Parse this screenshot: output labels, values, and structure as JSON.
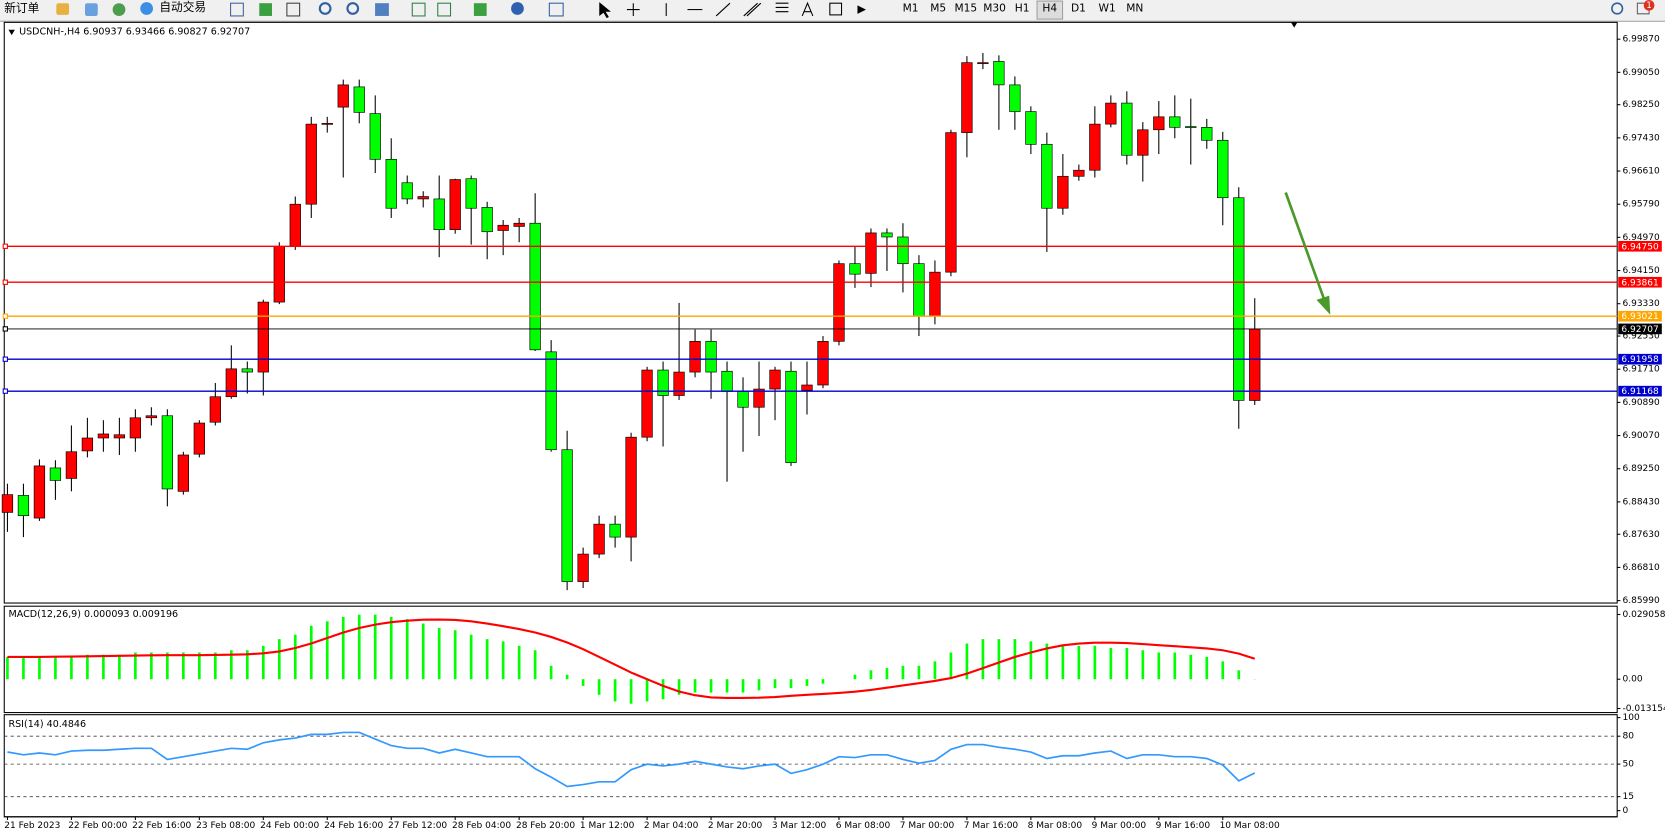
{
  "toolbar": {
    "new_order": "新订单",
    "auto_trading": "自动交易",
    "timeframes": [
      "M1",
      "M5",
      "M15",
      "M30",
      "H1",
      "H4",
      "D1",
      "W1",
      "MN"
    ],
    "alerts": "1"
  },
  "chart_data": [
    {
      "type": "candlestick",
      "title": "USDCNH-,H4  6.90937 6.93466 6.90827 6.92707",
      "categories": [
        "21 Feb 2023",
        null,
        null,
        null,
        "22 Feb 00:00",
        null,
        null,
        null,
        "22 Feb 16:00",
        null,
        null,
        null,
        "23 Feb 08:00",
        null,
        null,
        null,
        "24 Feb 00:00",
        null,
        null,
        null,
        "24 Feb 16:00",
        null,
        null,
        null,
        "27 Feb 12:00",
        null,
        null,
        null,
        "28 Feb 04:00",
        null,
        null,
        null,
        "28 Feb 20:00",
        null,
        null,
        null,
        "1 Mar 12:00",
        null,
        null,
        null,
        "2 Mar 04:00",
        null,
        null,
        null,
        "2 Mar 20:00",
        null,
        null,
        null,
        "3 Mar 12:00",
        null,
        null,
        null,
        "6 Mar 08:00",
        null,
        null,
        null,
        "7 Mar 00:00",
        null,
        null,
        null,
        "7 Mar 16:00",
        null,
        null,
        null,
        "8 Mar 08:00",
        null,
        null,
        null,
        "9 Mar 00:00",
        null,
        null,
        null,
        "9 Mar 16:00",
        null,
        null,
        null,
        "10 Mar 08:00",
        null,
        null
      ],
      "open": [
        6.8817,
        6.8859,
        6.8803,
        6.8927,
        6.8901,
        6.8969,
        6.9001,
        6.9001,
        6.9001,
        6.9051,
        6.9056,
        6.8869,
        6.8961,
        6.904,
        6.9103,
        6.9172,
        6.9164,
        6.9337,
        6.9474,
        6.9579,
        6.9777,
        6.9819,
        6.9869,
        6.9803,
        6.969,
        6.9632,
        6.9592,
        6.9592,
        6.9516,
        6.9642,
        6.9571,
        6.9514,
        6.9524,
        6.9532,
        6.9214,
        6.8972,
        6.8646,
        6.8714,
        6.8788,
        6.8756,
        6.9003,
        6.9169,
        6.9106,
        6.9164,
        6.924,
        6.9166,
        6.9116,
        6.9077,
        6.9122,
        6.9166,
        6.9119,
        6.9132,
        6.924,
        6.9432,
        6.9408,
        6.9508,
        6.9498,
        6.9432,
        6.9303,
        6.9411,
        6.9756,
        6.9927,
        6.9932,
        6.9874,
        6.9808,
        6.9727,
        6.9569,
        6.9648,
        6.9663,
        6.9777,
        6.9829,
        6.97,
        6.9763,
        6.9795,
        6.9771,
        6.9769,
        6.9737,
        6.9595,
        6.90937
      ],
      "high": [
        6.8888,
        6.8888,
        6.8948,
        6.8946,
        6.9032,
        6.9051,
        6.9045,
        6.9051,
        6.9072,
        6.9077,
        6.9072,
        6.8967,
        6.9045,
        6.9137,
        6.923,
        6.919,
        6.9343,
        6.9485,
        6.9598,
        6.9795,
        6.9795,
        6.9887,
        6.9887,
        6.9848,
        6.9742,
        6.965,
        6.9611,
        6.965,
        6.9642,
        6.965,
        6.9585,
        6.954,
        6.9545,
        6.9606,
        6.9243,
        6.9019,
        6.873,
        6.8809,
        6.8809,
        6.9014,
        6.9177,
        6.919,
        6.9335,
        6.9269,
        6.9269,
        6.919,
        6.9151,
        6.919,
        6.9177,
        6.919,
        6.919,
        6.9253,
        6.944,
        6.9474,
        6.9519,
        6.9519,
        6.9532,
        6.9453,
        6.944,
        6.9763,
        6.9945,
        6.9953,
        6.9947,
        6.9895,
        6.9821,
        6.9756,
        6.9703,
        6.9677,
        6.9821,
        6.9848,
        6.9858,
        6.9782,
        6.9834,
        6.9848,
        6.984,
        6.979,
        6.9758,
        6.9621,
        6.93466
      ],
      "low": [
        6.8769,
        6.8756,
        6.8796,
        6.8848,
        6.8869,
        6.8953,
        6.8967,
        6.8959,
        6.8967,
        6.9032,
        6.8832,
        6.8861,
        6.8953,
        6.9032,
        6.9098,
        6.9111,
        6.9106,
        6.9332,
        6.9466,
        6.9545,
        6.9756,
        6.9645,
        6.9779,
        6.9656,
        6.9545,
        6.9579,
        6.9571,
        6.9448,
        6.9506,
        6.9479,
        6.9443,
        6.9453,
        6.9485,
        6.9216,
        6.8967,
        6.8625,
        6.863,
        6.8704,
        6.873,
        6.8696,
        6.8993,
        6.898,
        6.9095,
        6.9151,
        6.9098,
        6.8893,
        6.8967,
        6.9006,
        6.9045,
        6.8932,
        6.9059,
        6.9124,
        6.923,
        6.9372,
        6.9374,
        6.9414,
        6.9361,
        6.9253,
        6.9282,
        6.9401,
        6.9695,
        6.9913,
        6.9763,
        6.9763,
        6.9703,
        6.9461,
        6.9553,
        6.9637,
        6.9645,
        6.9769,
        6.9677,
        6.9635,
        6.9703,
        6.9742,
        6.9677,
        6.9716,
        6.9527,
        6.9024,
        6.90827
      ],
      "close": [
        6.8861,
        6.8809,
        6.8932,
        6.8896,
        6.8967,
        6.9001,
        6.9011,
        6.9009,
        6.9051,
        6.9056,
        6.8875,
        6.8959,
        6.9038,
        6.9103,
        6.9172,
        6.9164,
        6.9337,
        6.9474,
        6.9579,
        6.9777,
        6.9779,
        6.9874,
        6.9806,
        6.969,
        6.9569,
        6.9592,
        6.9598,
        6.9516,
        6.964,
        6.9569,
        6.9511,
        6.9527,
        6.9532,
        6.9219,
        6.8972,
        6.8646,
        6.8714,
        6.8788,
        6.8756,
        6.9003,
        6.9169,
        6.9106,
        6.9164,
        6.924,
        6.9164,
        6.9116,
        6.9077,
        6.9122,
        6.9169,
        6.894,
        6.9132,
        6.924,
        6.9432,
        6.9406,
        6.9508,
        6.9498,
        6.9432,
        6.9303,
        6.9411,
        6.9756,
        6.9929,
        6.9929,
        6.9874,
        6.9808,
        6.9727,
        6.9569,
        6.9648,
        6.9663,
        6.9777,
        6.9829,
        6.97,
        6.9763,
        6.9795,
        6.9769,
        6.9769,
        6.9737,
        6.9595,
        6.9094,
        6.92707
      ],
      "up_color": "#ff0000",
      "down_color": "#00ff00",
      "ylim": [
        6.8593,
        7.0026
      ],
      "yticks": [
        {
          "value": 6.9987,
          "label": "6.99870"
        },
        {
          "value": 6.9905,
          "label": "6.99050"
        },
        {
          "value": 6.9825,
          "label": "6.98250"
        },
        {
          "value": 6.9743,
          "label": "6.97430"
        },
        {
          "value": 6.9661,
          "label": "6.96610"
        },
        {
          "value": 6.9579,
          "label": "6.95790"
        },
        {
          "value": 6.9497,
          "label": "6.94970"
        },
        {
          "value": 6.9415,
          "label": "6.94150"
        },
        {
          "value": 6.9333,
          "label": "6.93330"
        },
        {
          "value": 6.9253,
          "label": "6.92530"
        },
        {
          "value": 6.9171,
          "label": "6.91710"
        },
        {
          "value": 6.9089,
          "label": "6.90890"
        },
        {
          "value": 6.9007,
          "label": "6.90070"
        },
        {
          "value": 6.8925,
          "label": "6.89250"
        },
        {
          "value": 6.8843,
          "label": "6.88430"
        },
        {
          "value": 6.8763,
          "label": "6.87630"
        },
        {
          "value": 6.8681,
          "label": "6.86810"
        },
        {
          "value": 6.8599,
          "label": "6.85990"
        }
      ],
      "hlines": [
        {
          "price": {
            "value": 6.9475,
            "label": "6.94750"
          },
          "color": "#ff0000"
        },
        {
          "price": 6.93861,
          "color": "#ff0000"
        },
        {
          "price": 6.93021,
          "color": "#ffa500"
        },
        {
          "price": 6.92707,
          "color": "#000000"
        },
        {
          "price": 6.91958,
          "color": "#0000cd"
        },
        {
          "price": 6.91168,
          "color": "#0000cd"
        }
      ]
    },
    {
      "type": "macd",
      "title": "MACD(12,26,9) 0.000093 0.009196",
      "ylim": [
        -0.0145,
        0.0323
      ],
      "yticks": [
        0.029058,
        {
          "value": 0,
          "label": "0.00"
        },
        -0.013154
      ],
      "series": [
        {
          "type": "bar",
          "color": "#00ff00",
          "values": [
            0.01,
            0.01,
            0.01,
            0.01,
            0.01,
            0.011,
            0.011,
            0.011,
            0.012,
            0.012,
            0.012,
            0.012,
            0.012,
            0.012,
            0.013,
            0.013,
            0.015,
            0.018,
            0.02,
            0.024,
            0.026,
            0.028,
            0.029,
            0.029,
            0.028,
            0.027,
            0.025,
            0.023,
            0.022,
            0.02,
            0.018,
            0.017,
            0.015,
            0.013,
            0.006,
            0.002,
            -0.003,
            -0.007,
            -0.01,
            -0.011,
            -0.01,
            -0.009,
            -0.007,
            -0.006,
            -0.006,
            -0.006,
            -0.006,
            -0.005,
            -0.004,
            -0.004,
            -0.003,
            -0.002,
            0.0,
            0.002,
            0.004,
            0.005,
            0.006,
            0.006,
            0.008,
            0.012,
            0.016,
            0.018,
            0.018,
            0.018,
            0.017,
            0.016,
            0.015,
            0.015,
            0.015,
            0.014,
            0.014,
            0.013,
            0.012,
            0.012,
            0.011,
            0.01,
            0.008,
            0.004,
            9.3e-05
          ]
        },
        {
          "type": "line",
          "color": "#ff0000",
          "values": [
            0.01,
            0.01,
            0.01,
            0.0101,
            0.0102,
            0.0103,
            0.0104,
            0.0105,
            0.0106,
            0.0107,
            0.0108,
            0.0108,
            0.0108,
            0.0109,
            0.011,
            0.0112,
            0.0116,
            0.0125,
            0.014,
            0.016,
            0.0185,
            0.021,
            0.023,
            0.0245,
            0.0256,
            0.0263,
            0.0267,
            0.0268,
            0.0266,
            0.026,
            0.025,
            0.0238,
            0.0225,
            0.021,
            0.019,
            0.0165,
            0.0135,
            0.01,
            0.0065,
            0.003,
            0.0,
            -0.003,
            -0.0055,
            -0.0072,
            -0.0082,
            -0.0084,
            -0.0084,
            -0.0083,
            -0.008,
            -0.0075,
            -0.007,
            -0.0066,
            -0.0062,
            -0.0056,
            -0.0048,
            -0.0038,
            -0.0028,
            -0.0018,
            -0.0008,
            0.0005,
            0.0025,
            0.005,
            0.0075,
            0.01,
            0.012,
            0.0138,
            0.0152,
            0.016,
            0.0164,
            0.0164,
            0.0162,
            0.0158,
            0.0153,
            0.0148,
            0.0143,
            0.0138,
            0.013,
            0.0115,
            0.009196
          ]
        }
      ]
    },
    {
      "type": "rsi",
      "title": "RSI(14) 40.4846",
      "ylim": [
        -5.5,
        102
      ],
      "yticks": [
        100,
        80,
        50,
        15,
        0
      ],
      "levels": [
        80,
        50,
        15
      ],
      "series": [
        {
          "type": "line",
          "color": "#3399ff",
          "values": [
            63,
            60,
            62,
            60,
            64,
            65,
            65,
            66,
            67,
            67,
            55,
            58,
            61,
            64,
            67,
            66,
            73,
            76,
            78,
            82,
            82,
            84,
            84,
            77,
            70,
            67,
            67,
            62,
            66,
            62,
            58,
            58,
            58,
            45,
            36,
            26,
            28,
            31,
            31,
            44,
            50,
            48,
            50,
            53,
            50,
            47,
            45,
            48,
            50,
            40,
            44,
            50,
            58,
            57,
            60,
            60,
            55,
            51,
            54,
            66,
            71,
            71,
            68,
            66,
            63,
            56,
            59,
            59,
            62,
            64,
            56,
            60,
            60,
            58,
            58,
            56,
            49,
            32,
            40.4846
          ]
        }
      ]
    }
  ]
}
